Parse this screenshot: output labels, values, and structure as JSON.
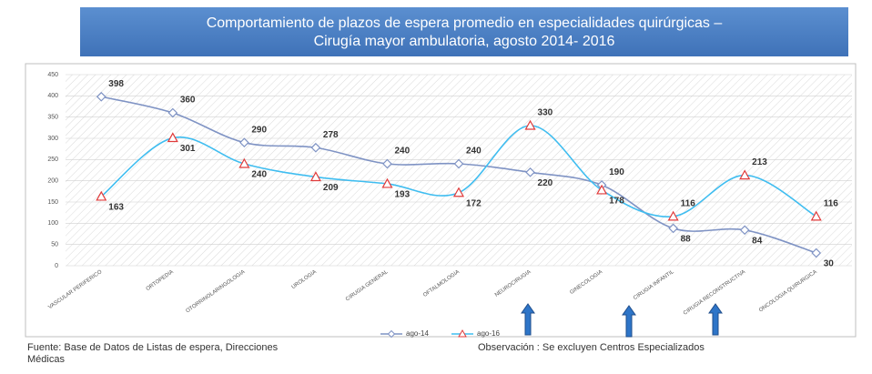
{
  "chart_data": {
    "type": "line",
    "title": [
      "Comportamiento de plazos de espera promedio en especialidades quirúrgicas –",
      "Cirugía mayor ambulatoria, agosto 2014- 2016"
    ],
    "categories": [
      "VASCULAR PERIFERICO",
      "ORTOPEDIA",
      "OTORRINOLARINGOLOGIA",
      "UROLOGIA",
      "CIRUGIA GENERAL",
      "OFTALMOLOGIA",
      "NEUROCIRUGIA",
      "GINECOLOGIA",
      "CIRUGIA INFANTIL",
      "CIRUGIA RECONSTRUCTIVA",
      "ONCOLOGIA QUIRURGICA"
    ],
    "series": [
      {
        "name": "ago-14",
        "color": "#7f93c4",
        "marker_color": "#7f93c4",
        "marker": "diamond",
        "values": [
          398,
          360,
          290,
          278,
          240,
          240,
          220,
          190,
          88,
          84,
          30
        ]
      },
      {
        "name": "ago-16",
        "color": "#3fbdf0",
        "marker_color": "#e03a3a",
        "marker": "triangle",
        "values": [
          163,
          301,
          240,
          209,
          193,
          172,
          330,
          178,
          116,
          213,
          116
        ]
      }
    ],
    "ylim": [
      0,
      450
    ],
    "yticks": [
      0,
      50,
      100,
      150,
      200,
      250,
      300,
      350,
      400,
      450
    ],
    "grid": true,
    "smooth": true,
    "legend": "bottom",
    "footer": {
      "source": [
        "Fuente:  Base de Datos de Listas de espera,  Direcciones",
        "Médicas"
      ],
      "note": "Observación : Se excluyen Centros Especializados"
    }
  }
}
